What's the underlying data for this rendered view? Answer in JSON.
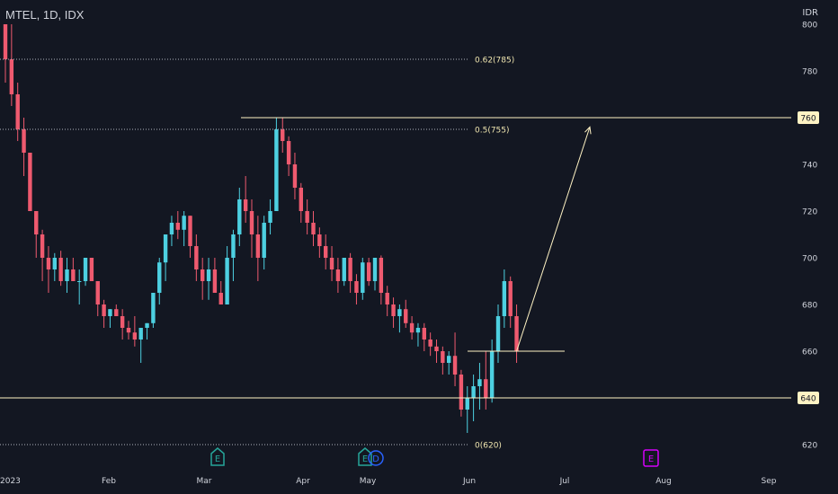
{
  "header": {
    "symbol_label": "MTEL, 1D, IDX",
    "currency": "IDR"
  },
  "colors": {
    "background": "#131722",
    "up": "#4dd0e1",
    "down": "#ef5a6f",
    "level": "#fff3c4",
    "fib": "#b2b5be",
    "earn_green": "#26a69a",
    "earn_blue": "#2962ff",
    "earn_purple": "#d500f9",
    "axis_text": "#d1d4dc"
  },
  "chart_data": {
    "type": "candlestick",
    "title": "MTEL, 1D, IDX",
    "y_axis": {
      "ticks": [
        620,
        640,
        660,
        680,
        700,
        720,
        740,
        760,
        780,
        800
      ],
      "ylim": [
        618,
        802
      ]
    },
    "x_axis": {
      "labels": [
        "2023",
        "Feb",
        "Mar",
        "Apr",
        "May",
        "Jun",
        "Jul",
        "Aug",
        "Sep"
      ]
    },
    "price_labels": [
      {
        "value": 760,
        "label": "760"
      },
      {
        "value": 640,
        "label": "640"
      }
    ],
    "fib_levels": [
      {
        "ratio": "0.62",
        "value": 785,
        "label": "0.62(785)"
      },
      {
        "ratio": "0.5",
        "value": 755,
        "label": "0.5(755)"
      },
      {
        "ratio": "0",
        "value": 620,
        "label": "0(620)"
      }
    ],
    "horizontal_levels": [
      760,
      640,
      660
    ],
    "earnings_markers": [
      {
        "label": "E",
        "color": "green"
      },
      {
        "label": "E",
        "color": "green"
      },
      {
        "label": "D",
        "color": "blue"
      },
      {
        "label": "E",
        "color": "purple"
      }
    ],
    "projection": {
      "from_value": 660,
      "to_value": 756,
      "to_date": "2023-07-10"
    },
    "candles": [
      [
        800,
        800,
        775,
        785
      ],
      [
        785,
        800,
        765,
        770
      ],
      [
        770,
        775,
        750,
        755
      ],
      [
        755,
        760,
        735,
        745
      ],
      [
        745,
        745,
        720,
        720
      ],
      [
        720,
        720,
        700,
        710
      ],
      [
        710,
        712,
        690,
        700
      ],
      [
        700,
        705,
        685,
        695
      ],
      [
        695,
        702,
        690,
        700
      ],
      [
        700,
        703,
        688,
        690
      ],
      [
        690,
        700,
        685,
        695
      ],
      [
        695,
        700,
        690,
        690
      ],
      [
        690,
        695,
        680,
        690
      ],
      [
        690,
        700,
        688,
        700
      ],
      [
        700,
        700,
        690,
        690
      ],
      [
        690,
        690,
        675,
        680
      ],
      [
        680,
        682,
        670,
        675
      ],
      [
        675,
        678,
        670,
        678
      ],
      [
        678,
        680,
        675,
        675
      ],
      [
        675,
        678,
        665,
        670
      ],
      [
        670,
        673,
        665,
        668
      ],
      [
        668,
        675,
        662,
        665
      ],
      [
        665,
        670,
        655,
        670
      ],
      [
        670,
        672,
        665,
        672
      ],
      [
        672,
        685,
        670,
        685
      ],
      [
        685,
        700,
        680,
        698
      ],
      [
        698,
        710,
        690,
        710
      ],
      [
        710,
        718,
        705,
        715
      ],
      [
        715,
        720,
        708,
        712
      ],
      [
        712,
        720,
        705,
        718
      ],
      [
        718,
        718,
        700,
        705
      ],
      [
        705,
        710,
        690,
        695
      ],
      [
        695,
        700,
        682,
        690
      ],
      [
        690,
        700,
        682,
        695
      ],
      [
        695,
        700,
        685,
        685
      ],
      [
        685,
        690,
        680,
        680
      ],
      [
        680,
        705,
        680,
        700
      ],
      [
        700,
        712,
        690,
        710
      ],
      [
        710,
        730,
        705,
        725
      ],
      [
        725,
        735,
        715,
        720
      ],
      [
        720,
        725,
        700,
        710
      ],
      [
        710,
        718,
        690,
        700
      ],
      [
        700,
        718,
        695,
        715
      ],
      [
        715,
        725,
        710,
        720
      ],
      [
        720,
        760,
        720,
        755
      ],
      [
        755,
        760,
        745,
        750
      ],
      [
        750,
        752,
        735,
        740
      ],
      [
        740,
        745,
        725,
        730
      ],
      [
        730,
        732,
        715,
        720
      ],
      [
        720,
        725,
        710,
        715
      ],
      [
        715,
        720,
        705,
        710
      ],
      [
        710,
        713,
        700,
        705
      ],
      [
        705,
        710,
        695,
        700
      ],
      [
        700,
        705,
        690,
        695
      ],
      [
        695,
        700,
        685,
        690
      ],
      [
        690,
        700,
        688,
        700
      ],
      [
        700,
        702,
        685,
        690
      ],
      [
        690,
        693,
        680,
        685
      ],
      [
        685,
        700,
        682,
        698
      ],
      [
        698,
        700,
        688,
        690
      ],
      [
        690,
        700,
        686,
        700
      ],
      [
        700,
        701,
        680,
        685
      ],
      [
        685,
        688,
        675,
        680
      ],
      [
        680,
        683,
        670,
        675
      ],
      [
        675,
        680,
        668,
        678
      ],
      [
        678,
        682,
        670,
        672
      ],
      [
        672,
        675,
        665,
        668
      ],
      [
        668,
        672,
        662,
        670
      ],
      [
        670,
        672,
        660,
        665
      ],
      [
        665,
        668,
        658,
        662
      ],
      [
        662,
        665,
        655,
        660
      ],
      [
        660,
        662,
        650,
        655
      ],
      [
        655,
        660,
        650,
        658
      ],
      [
        658,
        668,
        645,
        650
      ],
      [
        650,
        652,
        632,
        635
      ],
      [
        635,
        645,
        625,
        640
      ],
      [
        640,
        650,
        630,
        645
      ],
      [
        645,
        655,
        635,
        648
      ],
      [
        648,
        660,
        635,
        640
      ],
      [
        640,
        665,
        638,
        660
      ],
      [
        660,
        680,
        655,
        675
      ],
      [
        675,
        695,
        670,
        690
      ],
      [
        690,
        692,
        670,
        675
      ],
      [
        675,
        680,
        655,
        660
      ]
    ]
  }
}
